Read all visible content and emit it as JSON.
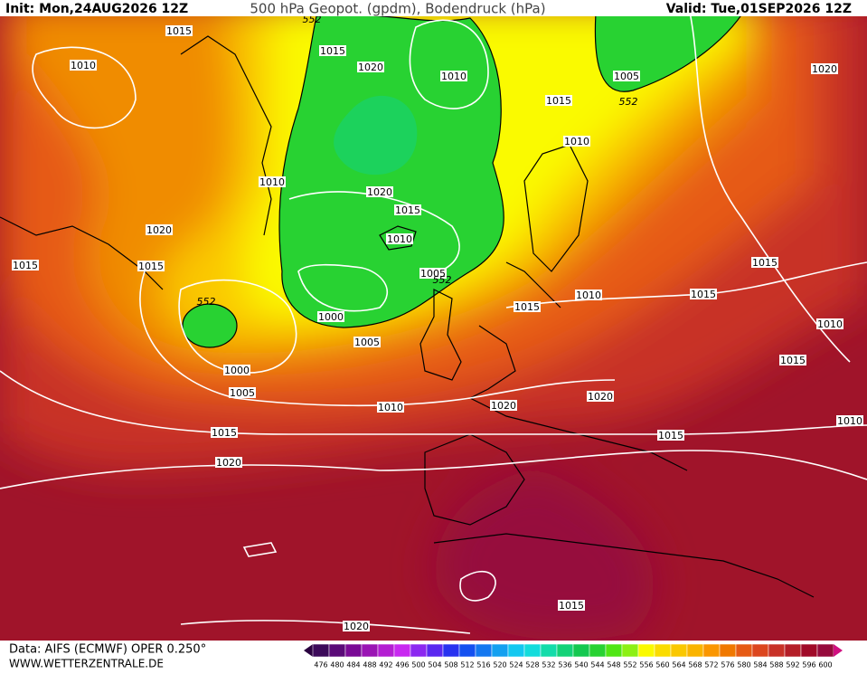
{
  "header": {
    "init": "Init: Mon,24AUG2026 12Z",
    "title": "500 hPa Geopot. (gpdm), Bodendruck (hPa)",
    "valid": "Valid: Tue,01SEP2026 12Z"
  },
  "isobar_labels": [
    "1015",
    "1010",
    "1015",
    "1020",
    "1010",
    "1005",
    "1020",
    "1015",
    "1010",
    "1010",
    "1020",
    "1015",
    "1020",
    "1010",
    "1015",
    "1015",
    "1005",
    "1015",
    "1010",
    "1015",
    "1015",
    "1000",
    "1010",
    "1005",
    "1015",
    "1000",
    "1005",
    "1020",
    "1010",
    "1020",
    "1010",
    "1015",
    "1015",
    "1020",
    "1015",
    "1020"
  ],
  "geopot_labels": [
    "552",
    "552",
    "552",
    "552"
  ],
  "legend": {
    "levels": [
      476,
      480,
      484,
      488,
      492,
      496,
      500,
      504,
      508,
      512,
      516,
      520,
      524,
      528,
      532,
      536,
      540,
      544,
      548,
      552,
      556,
      560,
      564,
      568,
      572,
      576,
      580,
      584,
      588,
      592,
      596,
      600
    ],
    "colors": [
      "#3c0a5a",
      "#5a0a78",
      "#7a0a96",
      "#9a14b4",
      "#b41ed2",
      "#c828f0",
      "#8c28f0",
      "#5a28f0",
      "#2832f0",
      "#1450f0",
      "#1478f0",
      "#14a0f0",
      "#14c8f0",
      "#14dcdc",
      "#14dcaa",
      "#14d278",
      "#14c850",
      "#28d232",
      "#50e614",
      "#8cf014",
      "#fafa00",
      "#fadc00",
      "#fac800",
      "#fab400",
      "#fa9600",
      "#f07800",
      "#e65a14",
      "#dc461e",
      "#c83228",
      "#b41e28",
      "#a00a28",
      "#960a3c"
    ]
  },
  "footer": {
    "data": "Data: AIFS (ECMWF) OPER 0.250°",
    "site": "WWW.WETTERZENTRALE.DE"
  }
}
